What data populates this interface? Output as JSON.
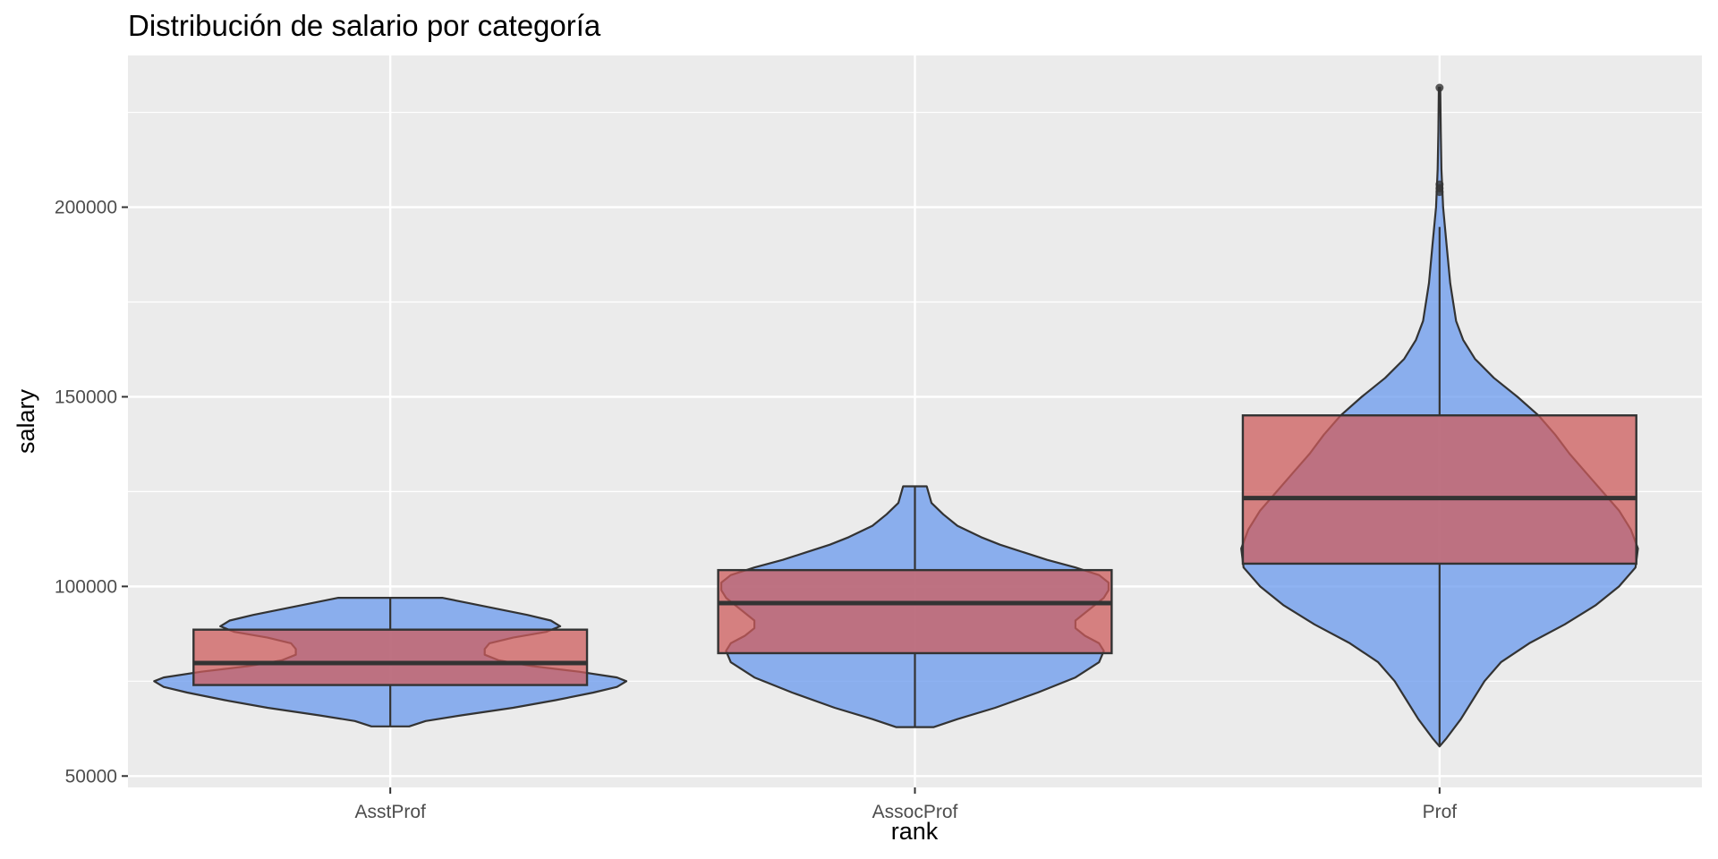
{
  "chart_data": {
    "type": "violin",
    "title": "Distribución de salario por categoría",
    "xlabel": "rank",
    "ylabel": "salary",
    "categories": [
      "AsstProf",
      "AssocProf",
      "Prof"
    ],
    "ylim": [
      47000,
      240000
    ],
    "yticks": [
      50000,
      100000,
      150000,
      200000
    ],
    "ytick_labels": [
      "50000",
      "100000",
      "150000",
      "200000"
    ],
    "grid": true,
    "legend": "none",
    "colors": {
      "panel": "#ebebeb",
      "grid": "#ffffff",
      "violin_fill": "#6495ed",
      "box_fill": "#cd5c5c",
      "outline": "#333333"
    },
    "boxes": [
      {
        "category": "AsstProf",
        "lower_whisker": 63100,
        "q1": 74000,
        "median": 79800,
        "q3": 88600,
        "upper_whisker": 97000,
        "outliers": []
      },
      {
        "category": "AssocProf",
        "lower_whisker": 62900,
        "q1": 82400,
        "median": 95600,
        "q3": 104300,
        "upper_whisker": 126400,
        "outliers": []
      },
      {
        "category": "Prof",
        "lower_whisker": 57800,
        "q1": 106000,
        "median": 123300,
        "q3": 145100,
        "upper_whisker": 194800,
        "outliers": [
          204000,
          205000,
          206000,
          231500
        ]
      }
    ],
    "violins": [
      {
        "category": "AsstProf",
        "min": 63100,
        "max": 97000,
        "profile": [
          [
            63100,
            0.08
          ],
          [
            64500,
            0.15
          ],
          [
            66000,
            0.3
          ],
          [
            68000,
            0.52
          ],
          [
            70000,
            0.7
          ],
          [
            72000,
            0.86
          ],
          [
            73500,
            0.96
          ],
          [
            75000,
            1.0
          ],
          [
            76000,
            0.96
          ],
          [
            77500,
            0.8
          ],
          [
            79000,
            0.6
          ],
          [
            80500,
            0.46
          ],
          [
            82000,
            0.4
          ],
          [
            83500,
            0.4
          ],
          [
            85000,
            0.42
          ],
          [
            86500,
            0.52
          ],
          [
            88000,
            0.66
          ],
          [
            89500,
            0.72
          ],
          [
            91000,
            0.68
          ],
          [
            92500,
            0.58
          ],
          [
            94000,
            0.46
          ],
          [
            95500,
            0.34
          ],
          [
            97000,
            0.22
          ]
        ]
      },
      {
        "category": "AssocProf",
        "min": 62900,
        "max": 126400,
        "profile": [
          [
            62900,
            0.08
          ],
          [
            65000,
            0.18
          ],
          [
            68000,
            0.34
          ],
          [
            72000,
            0.52
          ],
          [
            76000,
            0.68
          ],
          [
            80000,
            0.78
          ],
          [
            83000,
            0.8
          ],
          [
            85000,
            0.78
          ],
          [
            87000,
            0.72
          ],
          [
            89000,
            0.68
          ],
          [
            91000,
            0.68
          ],
          [
            93000,
            0.72
          ],
          [
            95000,
            0.76
          ],
          [
            97000,
            0.8
          ],
          [
            99000,
            0.82
          ],
          [
            101000,
            0.82
          ],
          [
            103000,
            0.78
          ],
          [
            105000,
            0.68
          ],
          [
            107000,
            0.56
          ],
          [
            109000,
            0.46
          ],
          [
            111000,
            0.36
          ],
          [
            113000,
            0.28
          ],
          [
            116000,
            0.18
          ],
          [
            119000,
            0.12
          ],
          [
            122000,
            0.07
          ],
          [
            126400,
            0.05
          ]
        ]
      },
      {
        "category": "Prof",
        "min": 57800,
        "max": 231500,
        "profile": [
          [
            57800,
            0.0
          ],
          [
            60000,
            0.03
          ],
          [
            65000,
            0.09
          ],
          [
            70000,
            0.14
          ],
          [
            75000,
            0.19
          ],
          [
            80000,
            0.26
          ],
          [
            85000,
            0.38
          ],
          [
            90000,
            0.53
          ],
          [
            95000,
            0.66
          ],
          [
            100000,
            0.76
          ],
          [
            105000,
            0.83
          ],
          [
            110000,
            0.84
          ],
          [
            115000,
            0.81
          ],
          [
            120000,
            0.76
          ],
          [
            125000,
            0.69
          ],
          [
            130000,
            0.62
          ],
          [
            135000,
            0.55
          ],
          [
            140000,
            0.49
          ],
          [
            145000,
            0.42
          ],
          [
            150000,
            0.33
          ],
          [
            155000,
            0.23
          ],
          [
            160000,
            0.15
          ],
          [
            165000,
            0.1
          ],
          [
            170000,
            0.07
          ],
          [
            180000,
            0.045
          ],
          [
            190000,
            0.03
          ],
          [
            200000,
            0.015
          ],
          [
            210000,
            0.008
          ],
          [
            220000,
            0.005
          ],
          [
            231500,
            0.003
          ]
        ]
      }
    ]
  }
}
